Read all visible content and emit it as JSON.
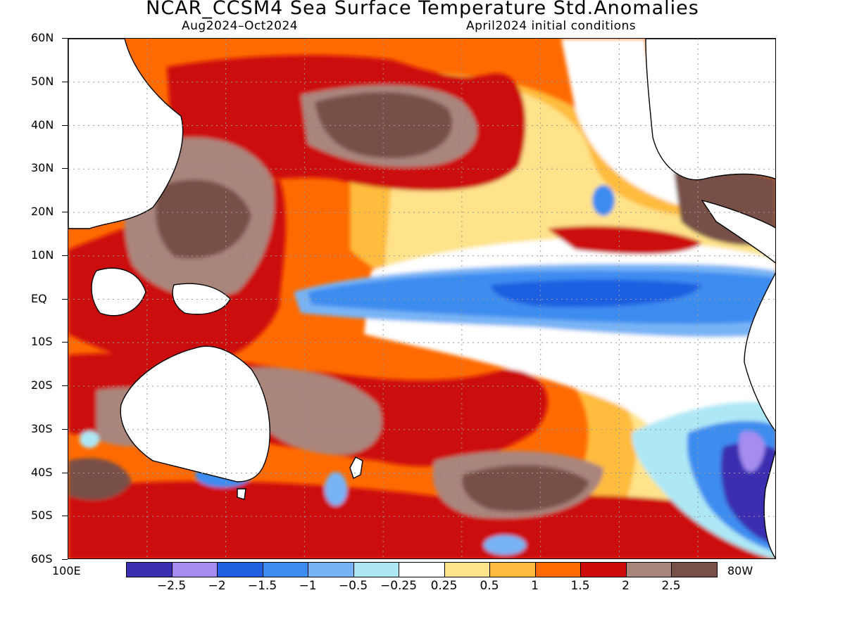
{
  "title": "NCAR_CCSM4 Sea Surface Temperature Std.Anomalies",
  "subtitle_left": "Aug2024–Oct2024",
  "subtitle_right": "April2024 initial conditions",
  "map": {
    "lat_labels": [
      "60N",
      "50N",
      "40N",
      "30N",
      "20N",
      "10N",
      "EQ",
      "10S",
      "20S",
      "30S",
      "40S",
      "50S",
      "60S"
    ],
    "lon_left_label": "100E",
    "lon_right_label": "80W",
    "lon_range": [
      100,
      280
    ],
    "lat_range": [
      -60,
      60
    ]
  },
  "colorbar": {
    "colors": [
      "#3b2fb0",
      "#a48cf0",
      "#1f5fe0",
      "#3d8cf0",
      "#78b4f5",
      "#aee8f5",
      "#ffffff",
      "#ffe38a",
      "#ffbc3c",
      "#ff6a00",
      "#cc0a0a",
      "#aa857c",
      "#785047"
    ],
    "labels": [
      "−2.5",
      "−2",
      "−1.5",
      "−1",
      "−0.5",
      "−0.25",
      "0.25",
      "0.5",
      "1",
      "1.5",
      "2",
      "2.5"
    ]
  }
}
